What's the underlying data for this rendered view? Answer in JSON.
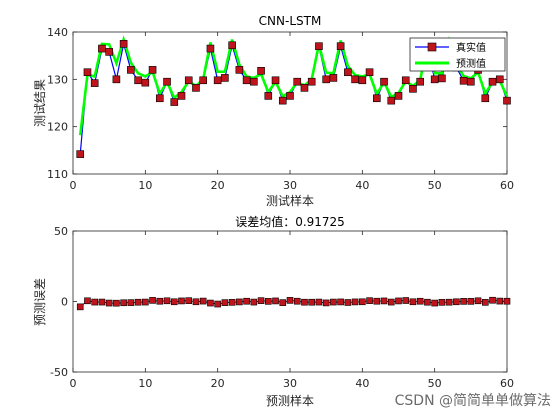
{
  "watermark": "CSDN @简简单单做算法",
  "chart_data": [
    {
      "type": "line",
      "title": "CNN-LSTM",
      "xlabel": "测试样本",
      "ylabel": "测试结果",
      "xlim": [
        0,
        60
      ],
      "ylim": [
        110,
        140
      ],
      "xticks": [
        0,
        10,
        20,
        30,
        40,
        50,
        60
      ],
      "yticks": [
        110,
        120,
        130,
        140
      ],
      "grid": false,
      "legend": "top-right",
      "x": [
        1,
        2,
        3,
        4,
        5,
        6,
        7,
        8,
        9,
        10,
        11,
        12,
        13,
        14,
        15,
        16,
        17,
        18,
        19,
        20,
        21,
        22,
        23,
        24,
        25,
        26,
        27,
        28,
        29,
        30,
        31,
        32,
        33,
        34,
        35,
        36,
        37,
        38,
        39,
        40,
        41,
        42,
        43,
        44,
        45,
        46,
        47,
        48,
        49,
        50,
        51,
        52,
        53,
        54,
        55,
        56,
        57,
        58,
        59,
        60
      ],
      "series": [
        {
          "name": "真实值",
          "color": "#0000ff",
          "marker": "square",
          "marker_face": "#c0141c",
          "values": [
            114.2,
            131.5,
            129.2,
            136.5,
            135.8,
            130.0,
            137.5,
            132.0,
            129.8,
            129.3,
            132.0,
            126.0,
            129.5,
            125.2,
            126.5,
            129.8,
            128.2,
            129.8,
            136.5,
            129.8,
            130.3,
            137.2,
            132.0,
            129.8,
            129.5,
            131.8,
            126.5,
            129.8,
            125.5,
            126.5,
            129.5,
            128.2,
            129.5,
            137.0,
            130.0,
            130.3,
            137.0,
            131.5,
            130.0,
            129.8,
            131.5,
            126.0,
            129.5,
            125.5,
            126.5,
            129.8,
            128.0,
            129.5,
            136.8,
            130.0,
            130.2,
            137.3,
            132.5,
            129.7,
            129.5,
            132.0,
            126.0,
            129.5,
            130.0,
            125.5
          ]
        },
        {
          "name": "预测值",
          "color": "#00ff00",
          "values": [
            118.2,
            131.0,
            130.6,
            137.5,
            137.4,
            133.4,
            138.4,
            133.5,
            131.3,
            130.6,
            131.6,
            127.0,
            129.4,
            126.1,
            127.3,
            129.6,
            128.6,
            130.0,
            137.8,
            131.6,
            131.6,
            138.4,
            133.1,
            130.6,
            130.3,
            131.1,
            127.3,
            129.5,
            126.4,
            127.3,
            129.4,
            128.7,
            130.0,
            137.4,
            131.4,
            131.3,
            138.2,
            132.8,
            130.9,
            130.6,
            131.1,
            126.9,
            129.4,
            126.3,
            127.1,
            129.6,
            128.6,
            129.9,
            137.3,
            131.3,
            131.3,
            138.1,
            133.2,
            130.7,
            130.2,
            131.5,
            127.0,
            129.4,
            129.7,
            126.4
          ]
        }
      ]
    },
    {
      "type": "scatter",
      "title": "误差均值：0.91725",
      "xlabel": "预测样本",
      "ylabel": "预测误差",
      "xlim": [
        0,
        60
      ],
      "ylim": [
        -50,
        50
      ],
      "xticks": [
        0,
        10,
        20,
        30,
        40,
        50,
        60
      ],
      "yticks": [
        -50,
        0,
        50
      ],
      "grid": false,
      "x": [
        1,
        2,
        3,
        4,
        5,
        6,
        7,
        8,
        9,
        10,
        11,
        12,
        13,
        14,
        15,
        16,
        17,
        18,
        19,
        20,
        21,
        22,
        23,
        24,
        25,
        26,
        27,
        28,
        29,
        30,
        31,
        32,
        33,
        34,
        35,
        36,
        37,
        38,
        39,
        40,
        41,
        42,
        43,
        44,
        45,
        46,
        47,
        48,
        49,
        50,
        51,
        52,
        53,
        54,
        55,
        56,
        57,
        58,
        59,
        60
      ],
      "series": [
        {
          "color": "#000000",
          "marker": "square",
          "marker_face": "#c0141c",
          "values": [
            -3.8,
            0.5,
            -0.4,
            -0.4,
            -1.1,
            -1.2,
            -0.9,
            -0.8,
            -0.5,
            -0.4,
            0.8,
            0.2,
            0.5,
            -0.2,
            0.4,
            0.6,
            -0.2,
            0.3,
            -1.1,
            -1.8,
            -0.8,
            -0.6,
            -0.3,
            0.2,
            -0.4,
            0.6,
            0.1,
            0.4,
            -0.8,
            0.8,
            0.2,
            -0.5,
            -0.5,
            -0.4,
            -1.0,
            -0.4,
            -0.3,
            -0.7,
            -0.3,
            -0.2,
            0.6,
            0.2,
            0.4,
            -0.4,
            0.4,
            0.7,
            -0.2,
            0.2,
            -0.5,
            -1.1,
            -0.6,
            -0.5,
            -0.2,
            0.1,
            0.1,
            0.5,
            -0.6,
            0.9,
            0.3,
            0.2
          ]
        }
      ]
    }
  ]
}
